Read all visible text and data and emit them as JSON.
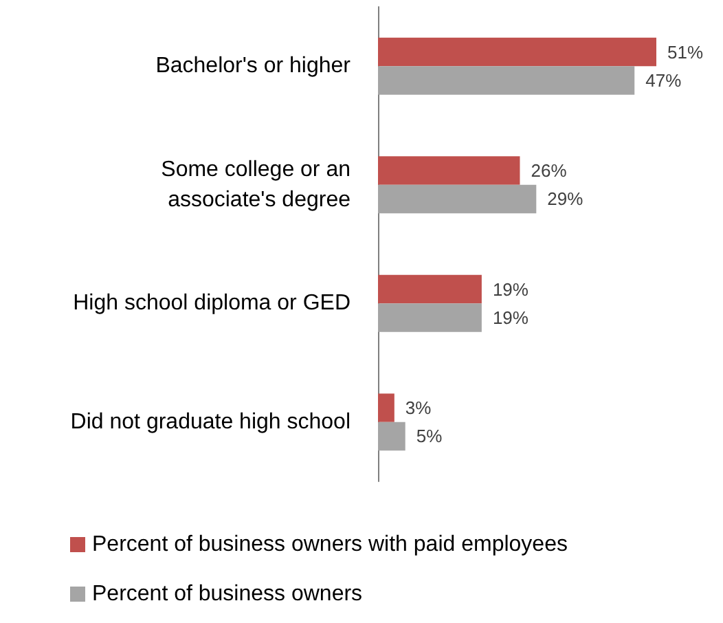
{
  "chart_data": {
    "type": "bar",
    "orientation": "horizontal",
    "categories": [
      "Bachelor's or higher",
      "Some college or an\nassociate's degree",
      "High school diploma or GED",
      "Did not graduate high school"
    ],
    "series": [
      {
        "name": "Percent of business owners with paid employees",
        "color": "#c0504d",
        "values": [
          51,
          26,
          19,
          3
        ],
        "value_labels": [
          "51%",
          "26%",
          "19%",
          "3%"
        ]
      },
      {
        "name": "Percent of business owners",
        "color": "#a5a5a5",
        "values": [
          47,
          29,
          19,
          5
        ],
        "value_labels": [
          "47%",
          "29%",
          "19%",
          "5%"
        ]
      }
    ],
    "legend": "bottom left"
  }
}
